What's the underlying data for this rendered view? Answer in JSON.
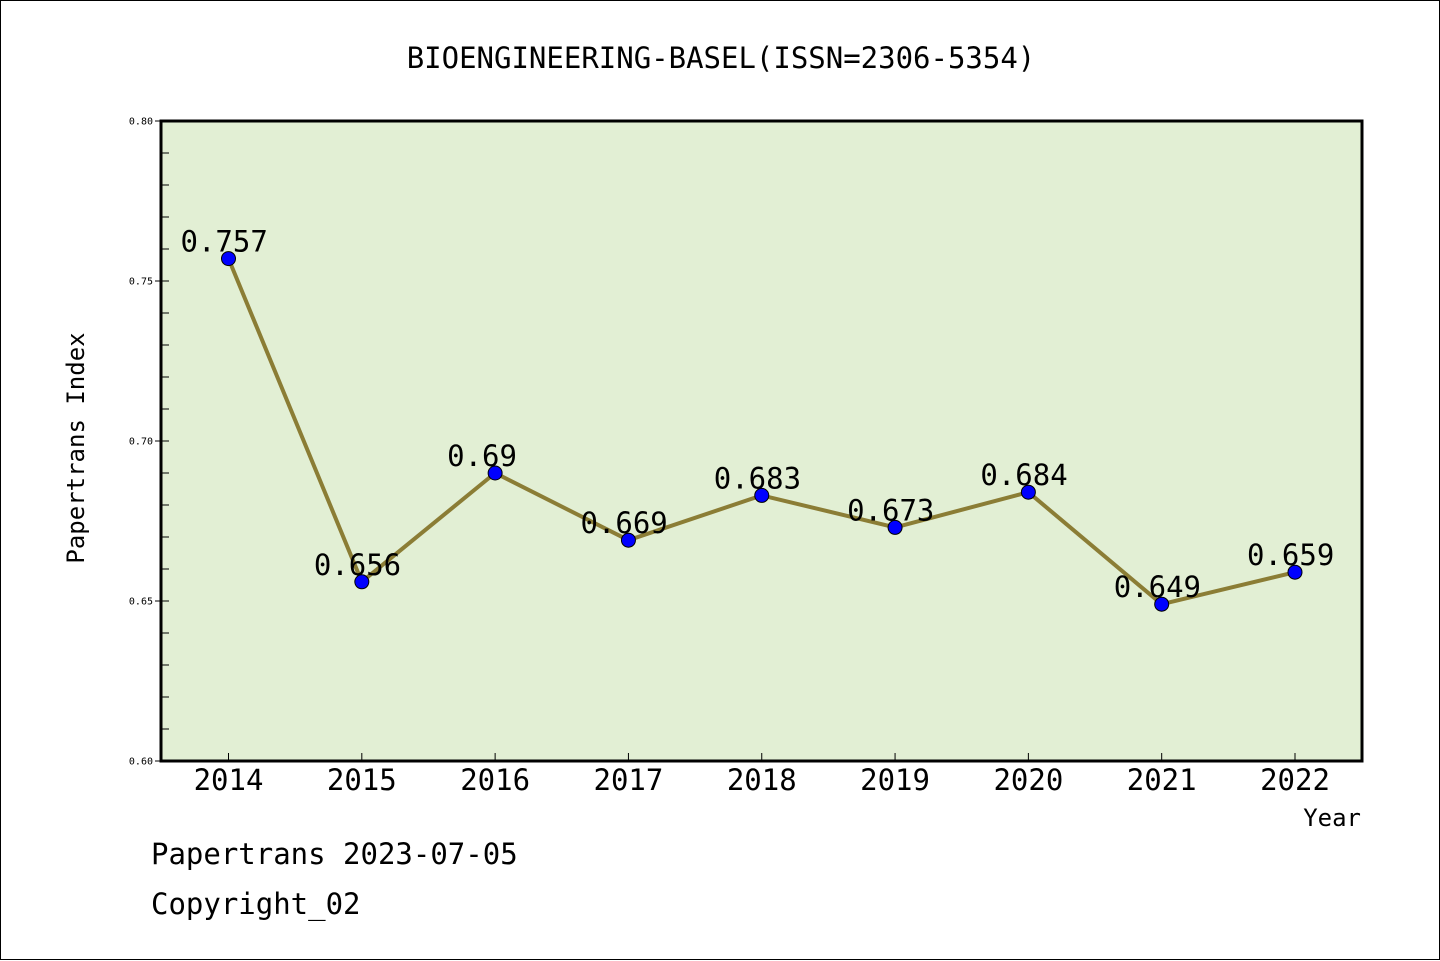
{
  "chart_data": {
    "type": "line",
    "title": "BIOENGINEERING-BASEL(ISSN=2306-5354)",
    "xlabel": "Year",
    "ylabel": "Papertrans Index",
    "categories": [
      "2014",
      "2015",
      "2016",
      "2017",
      "2018",
      "2019",
      "2020",
      "2021",
      "2022"
    ],
    "series": [
      {
        "values": [
          0.757,
          0.656,
          0.69,
          0.669,
          0.683,
          0.673,
          0.684,
          0.649,
          0.659
        ],
        "labels": [
          "0.757",
          "0.656",
          "0.69",
          "0.669",
          "0.683",
          "0.673",
          "0.684",
          "0.649",
          "0.659"
        ],
        "line_color": "#8b7d35",
        "marker_color": "#0000ff"
      }
    ],
    "ylim": [
      0.6,
      0.8
    ],
    "yticks": [
      "0.60",
      "0.65",
      "0.70",
      "0.75",
      "0.80"
    ],
    "ytick_values": [
      0.6,
      0.65,
      0.7,
      0.75,
      0.8
    ],
    "plot_background": "#e2efd4",
    "grid": false
  },
  "footer": {
    "line1": "Papertrans 2023-07-05",
    "line2": "Copyright_02"
  }
}
